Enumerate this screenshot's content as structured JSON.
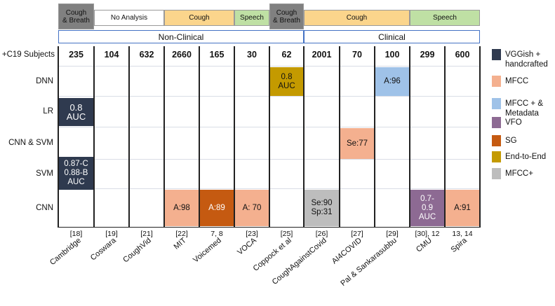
{
  "headers": [
    {
      "label": "Cough\n& Breath",
      "color": "#808080",
      "text_color": "#111111"
    },
    {
      "label": "No Analysis",
      "color": "#ffffff",
      "text_color": "#111111"
    },
    {
      "label": "Cough",
      "color": "#fbd58c",
      "text_color": "#111111"
    },
    {
      "label": "Speech",
      "color": "#bfe0a4",
      "text_color": "#111111"
    },
    {
      "label": "Cough\n& Breath",
      "color": "#808080",
      "text_color": "#111111"
    },
    {
      "label": "Cough",
      "color": "#fbd58c",
      "text_color": "#111111"
    },
    {
      "label": "Speech",
      "color": "#bfe0a4",
      "text_color": "#111111"
    }
  ],
  "groups": [
    "Non-Clinical",
    "Clinical"
  ],
  "subjects_label": "+C19 Subjects",
  "columns": [
    {
      "count": "235",
      "ref": "[18]",
      "name": "Cambridge"
    },
    {
      "count": "104",
      "ref": "[19]",
      "name": "Coswara"
    },
    {
      "count": "632",
      "ref": "[21]",
      "name": "CoughVid"
    },
    {
      "count": "2660",
      "ref": "[22]",
      "name": "MIT"
    },
    {
      "count": "165",
      "ref": "7, 8",
      "name": "Voicemed"
    },
    {
      "count": "30",
      "ref": "[23]",
      "name": "VOCA"
    },
    {
      "count": "62",
      "ref": "[25]",
      "name": "Coppock et al"
    },
    {
      "count": "2001",
      "ref": "[26]",
      "name": "CoughAgainstCovid"
    },
    {
      "count": "70",
      "ref": "[27]",
      "name": "AI4COVID"
    },
    {
      "count": "100",
      "ref": "[29]",
      "name": "Pal & Sankarasubbu"
    },
    {
      "count": "299",
      "ref": "[30], 12",
      "name": "CMU"
    },
    {
      "count": "600",
      "ref": "13, 14",
      "name": "Spira"
    }
  ],
  "rows": [
    "DNN",
    "LR",
    "CNN & SVM",
    "SVM",
    "CNN"
  ],
  "cells": [
    {
      "row": 1,
      "col": 0,
      "label": "0.8\nAUC",
      "legend": "VGGish + handcrafted"
    },
    {
      "row": 3,
      "col": 0,
      "label": "0.87-C\n0.88-B\nAUC",
      "legend": "VGGish + handcrafted"
    },
    {
      "row": 0,
      "col": 6,
      "label": "0.8\nAUC",
      "legend": "End-to-End"
    },
    {
      "row": 0,
      "col": 9,
      "label": "A:96",
      "legend": "MFCC + & Metadata"
    },
    {
      "row": 2,
      "col": 8,
      "label": "Se:77",
      "legend": "MFCC"
    },
    {
      "row": 4,
      "col": 3,
      "label": "A:98",
      "legend": "MFCC"
    },
    {
      "row": 4,
      "col": 4,
      "label": "A:89",
      "legend": "SG"
    },
    {
      "row": 4,
      "col": 5,
      "label": "A: 70",
      "legend": "MFCC"
    },
    {
      "row": 4,
      "col": 7,
      "label": "Se:90\nSp:31",
      "legend": "MFCC+"
    },
    {
      "row": 4,
      "col": 10,
      "label": "0.7-\n0.9\nAUC",
      "legend": "VFO"
    },
    {
      "row": 4,
      "col": 11,
      "label": "A:91",
      "legend": "MFCC"
    }
  ],
  "legend": [
    {
      "label": "VGGish +\nhandcrafted",
      "color": "#2f3a4f",
      "dark": true
    },
    {
      "label": "MFCC",
      "color": "#f4b08f",
      "dark": false
    },
    {
      "label": "MFCC + &\nMetadata",
      "color": "#9fc2e8",
      "dark": false
    },
    {
      "label": "VFO",
      "color": "#8d6a93",
      "dark": true
    },
    {
      "label": "SG",
      "color": "#c55a11",
      "dark": true
    },
    {
      "label": "End-to-End",
      "color": "#c49a00",
      "dark": false
    },
    {
      "label": "MFCC+",
      "color": "#bdbdbd",
      "dark": false
    }
  ]
}
